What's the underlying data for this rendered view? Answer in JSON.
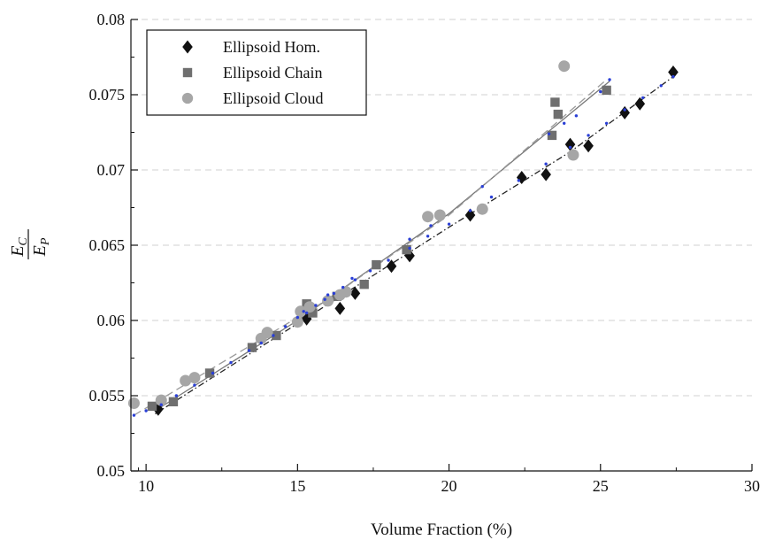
{
  "chart_data": {
    "type": "scatter",
    "xlabel": "Volume Fraction (%)",
    "ylabel": {
      "numerator": "E",
      "numerator_sub": "C",
      "denominator": "E",
      "denominator_sub": "P"
    },
    "xlim": [
      9.5,
      30
    ],
    "ylim": [
      0.05,
      0.08
    ],
    "xticks": [
      10,
      15,
      20,
      25,
      30
    ],
    "yticks": [
      0.05,
      0.055,
      0.06,
      0.065,
      0.07,
      0.075,
      0.08
    ],
    "xtick_labels": [
      "10",
      "15",
      "20",
      "25",
      "30"
    ],
    "ytick_labels": [
      "0.05",
      "0.055",
      "0.06",
      "0.065",
      "0.07",
      "0.075",
      "0.08"
    ],
    "grid": "horizontal-dashed",
    "legend_position": "top-left",
    "series": [
      {
        "name": "Ellipsoid Hom.",
        "marker": "diamond",
        "color": "#111111",
        "points": [
          [
            10.4,
            0.0541
          ],
          [
            15.3,
            0.0601
          ],
          [
            16.4,
            0.0608
          ],
          [
            16.9,
            0.0618
          ],
          [
            18.1,
            0.0636
          ],
          [
            18.7,
            0.0643
          ],
          [
            20.7,
            0.067
          ],
          [
            22.4,
            0.0695
          ],
          [
            23.2,
            0.0697
          ],
          [
            24.0,
            0.0717
          ],
          [
            24.6,
            0.0716
          ],
          [
            25.8,
            0.0738
          ],
          [
            26.3,
            0.0744
          ],
          [
            27.4,
            0.0765
          ]
        ]
      },
      {
        "name": "Ellipsoid Chain",
        "marker": "square",
        "color": "#6f6f6f",
        "points": [
          [
            10.2,
            0.0543
          ],
          [
            10.9,
            0.0546
          ],
          [
            12.1,
            0.0565
          ],
          [
            13.5,
            0.0582
          ],
          [
            14.3,
            0.059
          ],
          [
            15.3,
            0.0611
          ],
          [
            15.5,
            0.0605
          ],
          [
            16.3,
            0.0616
          ],
          [
            17.2,
            0.0624
          ],
          [
            17.6,
            0.0637
          ],
          [
            18.6,
            0.0647
          ],
          [
            23.4,
            0.0723
          ],
          [
            23.5,
            0.0745
          ],
          [
            23.6,
            0.0737
          ],
          [
            25.2,
            0.0753
          ]
        ]
      },
      {
        "name": "Ellipsoid Cloud",
        "marker": "circle",
        "color": "#a6a6a6",
        "points": [
          [
            9.6,
            0.0545
          ],
          [
            10.5,
            0.0547
          ],
          [
            11.3,
            0.056
          ],
          [
            11.6,
            0.0562
          ],
          [
            13.8,
            0.0588
          ],
          [
            14.0,
            0.0592
          ],
          [
            15.0,
            0.0599
          ],
          [
            15.1,
            0.0606
          ],
          [
            15.4,
            0.0609
          ],
          [
            16.0,
            0.0613
          ],
          [
            16.4,
            0.0617
          ],
          [
            16.6,
            0.0619
          ],
          [
            19.3,
            0.0669
          ],
          [
            19.7,
            0.067
          ],
          [
            21.1,
            0.0674
          ],
          [
            23.8,
            0.0769
          ],
          [
            24.1,
            0.071
          ]
        ]
      }
    ],
    "fit_lines": [
      {
        "style": "dash-dot",
        "color": "#222222",
        "points": [
          [
            10.3,
            0.0538
          ],
          [
            15.4,
            0.0603
          ],
          [
            20.0,
            0.0662
          ],
          [
            24.0,
            0.0712
          ],
          [
            27.4,
            0.0762
          ]
        ]
      },
      {
        "style": "solid",
        "color": "#777777",
        "points": [
          [
            10.3,
            0.054
          ],
          [
            15.0,
            0.06
          ],
          [
            20.0,
            0.0671
          ],
          [
            25.3,
            0.0759
          ]
        ]
      },
      {
        "style": "dashed",
        "color": "#9a9a9a",
        "points": [
          [
            9.6,
            0.0537
          ],
          [
            13.0,
            0.0578
          ],
          [
            16.0,
            0.0614
          ],
          [
            20.0,
            0.067
          ],
          [
            25.2,
            0.076
          ]
        ]
      }
    ],
    "blue_marker_color": "#2a3fd6",
    "blue_points": [
      [
        9.6,
        0.0537
      ],
      [
        10.0,
        0.054
      ],
      [
        10.5,
        0.0544
      ],
      [
        11.0,
        0.055
      ],
      [
        11.6,
        0.0557
      ],
      [
        12.2,
        0.0565
      ],
      [
        12.8,
        0.0572
      ],
      [
        13.4,
        0.058
      ],
      [
        13.8,
        0.0585
      ],
      [
        14.2,
        0.059
      ],
      [
        14.6,
        0.0596
      ],
      [
        15.0,
        0.0602
      ],
      [
        15.3,
        0.0605
      ],
      [
        15.6,
        0.061
      ],
      [
        15.9,
        0.0614
      ],
      [
        16.2,
        0.0618
      ],
      [
        16.5,
        0.0622
      ],
      [
        16.9,
        0.0627
      ],
      [
        17.4,
        0.0633
      ],
      [
        18.0,
        0.064
      ],
      [
        18.7,
        0.0648
      ],
      [
        19.3,
        0.0656
      ],
      [
        20.0,
        0.0664
      ],
      [
        20.7,
        0.0673
      ],
      [
        21.4,
        0.0682
      ],
      [
        22.3,
        0.0693
      ],
      [
        23.2,
        0.0704
      ],
      [
        24.0,
        0.0715
      ],
      [
        24.6,
        0.0723
      ],
      [
        25.2,
        0.0731
      ],
      [
        25.8,
        0.074
      ],
      [
        26.4,
        0.0748
      ],
      [
        27.0,
        0.0756
      ],
      [
        27.4,
        0.0762
      ],
      [
        15.2,
        0.0606
      ],
      [
        16.0,
        0.0617
      ],
      [
        16.8,
        0.0628
      ],
      [
        18.7,
        0.0654
      ],
      [
        19.4,
        0.0663
      ],
      [
        21.1,
        0.0689
      ],
      [
        23.3,
        0.0724
      ],
      [
        23.8,
        0.0731
      ],
      [
        24.2,
        0.0736
      ],
      [
        25.0,
        0.0752
      ],
      [
        25.3,
        0.076
      ]
    ],
    "legend": [
      {
        "label": "Ellipsoid Hom.",
        "marker": "diamond",
        "color": "#111111"
      },
      {
        "label": "Ellipsoid Chain",
        "marker": "square",
        "color": "#6f6f6f"
      },
      {
        "label": "Ellipsoid Cloud",
        "marker": "circle",
        "color": "#a6a6a6"
      }
    ]
  }
}
